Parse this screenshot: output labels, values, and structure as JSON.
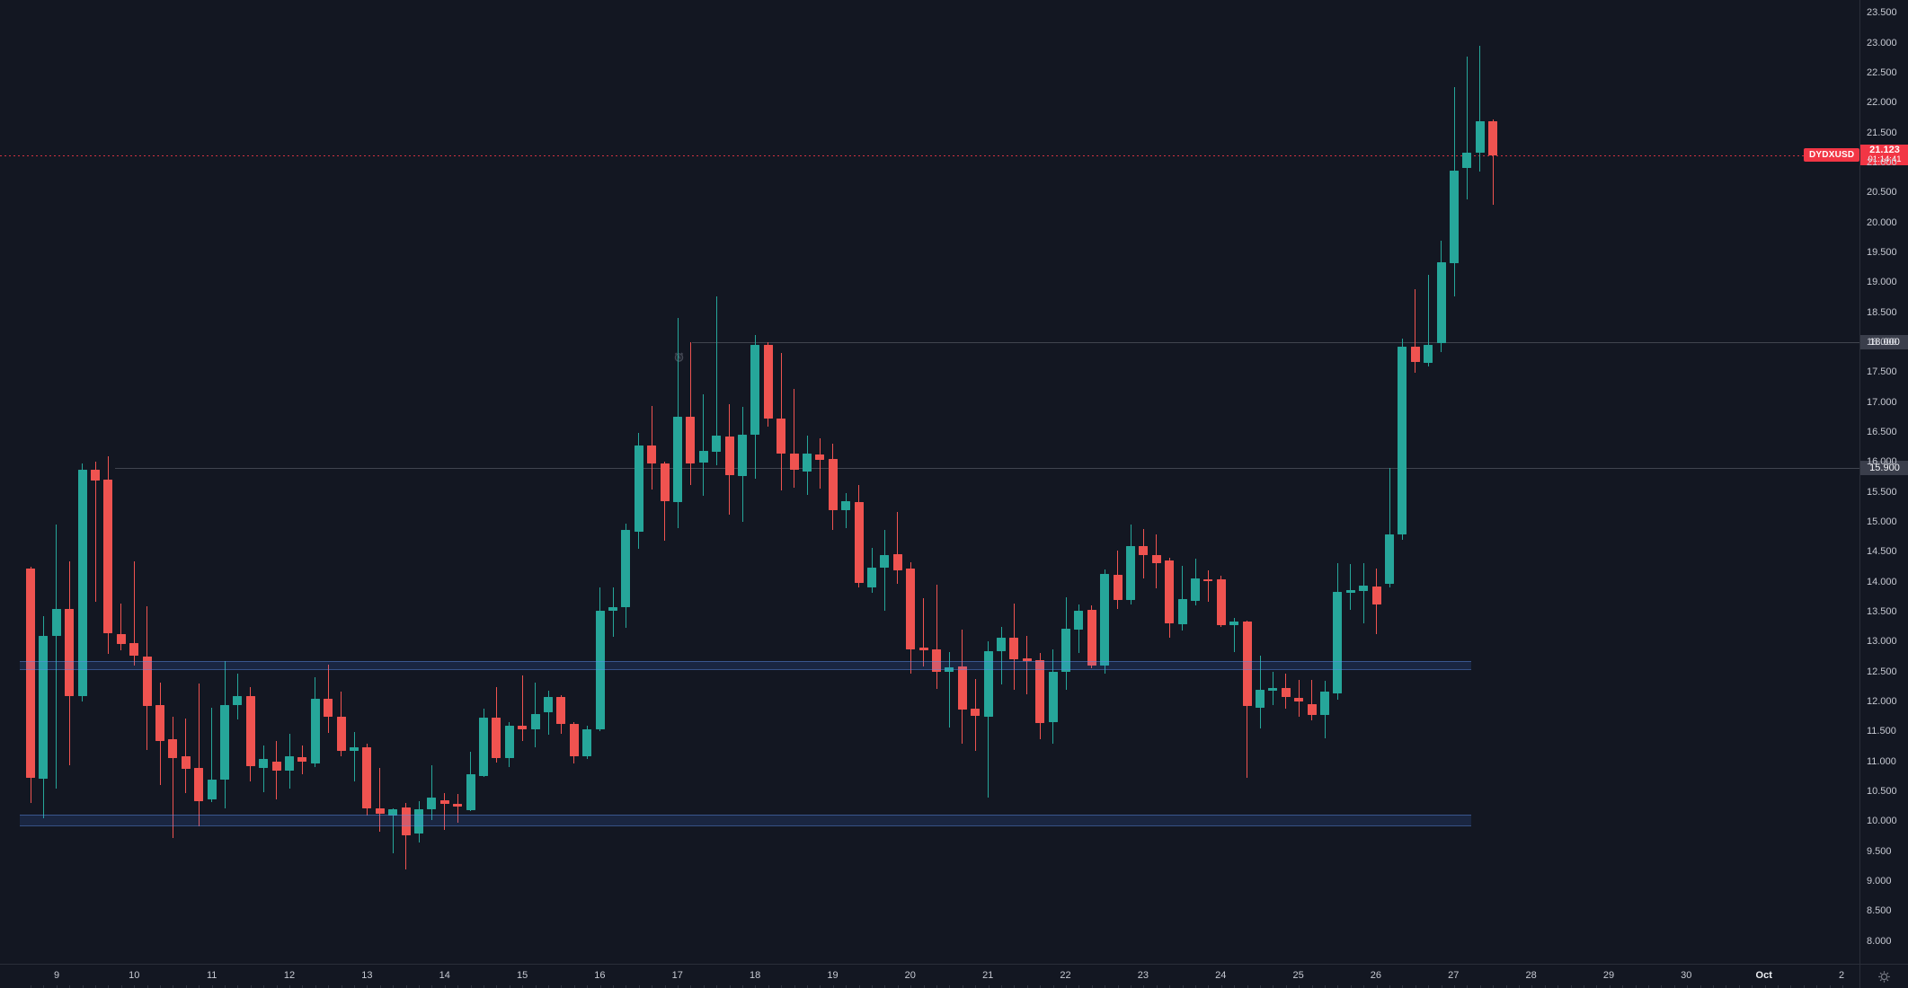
{
  "symbol": "DYDXUSD",
  "price_line": {
    "symbol_tag": "DYDXUSD",
    "last_price": "21.123",
    "countdown": "01:14:41",
    "color": "#f23645"
  },
  "colors": {
    "background": "#131722",
    "up": "#26a69a",
    "down": "#ef5350",
    "axis_text": "#c7cad3",
    "axis_border": "#2a2e39",
    "level_tag_bg": "#3a3e4b",
    "zone_fill": "rgba(74,134,255,0.14)"
  },
  "price_axis": {
    "tick_labels": [
      "23.500",
      "23.000",
      "22.500",
      "22.000",
      "21.500",
      "21.000",
      "20.500",
      "20.000",
      "19.500",
      "19.000",
      "18.500",
      "18.000",
      "17.500",
      "17.000",
      "16.500",
      "16.000",
      "15.500",
      "15.000",
      "14.500",
      "14.000",
      "13.500",
      "13.000",
      "12.500",
      "12.000",
      "11.500",
      "11.000",
      "10.500",
      "10.000",
      "9.500",
      "9.000",
      "8.500",
      "8.000"
    ],
    "level_tags": [
      {
        "text": "18.000"
      },
      {
        "text": "15.900"
      }
    ]
  },
  "time_axis": {
    "labels": [
      "9",
      "10",
      "11",
      "12",
      "13",
      "14",
      "15",
      "16",
      "17",
      "18",
      "19",
      "20",
      "21",
      "22",
      "23",
      "24",
      "25",
      "26",
      "27",
      "28",
      "29",
      "30",
      "Oct",
      "2"
    ],
    "emphasized": [
      "Oct"
    ]
  },
  "levels": [
    {
      "price": 18.0,
      "label": "18.000"
    },
    {
      "price": 15.9,
      "label": "15.900"
    }
  ],
  "zones": [
    {
      "price_top": 12.68,
      "price_bottom": 12.52
    },
    {
      "price_top": 10.11,
      "price_bottom": 9.92
    }
  ],
  "icons": {
    "alarm": "alarm-clock-icon on chart near 17.75",
    "gear": "time-axis-settings-gear"
  },
  "chart_data": {
    "type": "candlestick",
    "title": "DYDXUSD",
    "ylim": [
      8.0,
      23.5
    ],
    "y_tick_step": 0.5,
    "grid": "off",
    "current_price": 21.123,
    "ohlc_format": [
      "open",
      "high",
      "low",
      "close"
    ],
    "candles": [
      [
        14.22,
        14.25,
        10.31,
        10.72
      ],
      [
        10.71,
        13.43,
        10.05,
        13.09
      ],
      [
        13.09,
        14.96,
        10.54,
        13.55
      ],
      [
        13.55,
        14.34,
        10.93,
        12.09
      ],
      [
        12.09,
        15.97,
        12.0,
        15.87
      ],
      [
        15.87,
        16.0,
        13.66,
        15.69
      ],
      [
        15.7,
        16.09,
        12.8,
        13.14
      ],
      [
        13.13,
        13.64,
        12.86,
        12.96
      ],
      [
        12.97,
        14.34,
        12.6,
        12.77
      ],
      [
        12.75,
        13.59,
        11.19,
        11.93
      ],
      [
        11.94,
        12.32,
        10.6,
        11.34
      ],
      [
        11.37,
        11.74,
        9.72,
        11.06
      ],
      [
        11.08,
        11.71,
        10.47,
        10.87
      ],
      [
        10.89,
        12.3,
        9.91,
        10.34
      ],
      [
        10.37,
        11.89,
        10.32,
        10.69
      ],
      [
        10.7,
        12.68,
        10.22,
        11.94
      ],
      [
        11.94,
        12.47,
        11.7,
        12.09
      ],
      [
        12.09,
        12.24,
        10.67,
        10.92
      ],
      [
        10.89,
        11.27,
        10.49,
        11.04
      ],
      [
        10.99,
        11.34,
        10.37,
        10.84
      ],
      [
        10.84,
        11.46,
        10.54,
        11.09
      ],
      [
        11.07,
        11.26,
        10.79,
        10.99
      ],
      [
        10.97,
        12.4,
        10.91,
        12.04
      ],
      [
        12.04,
        12.62,
        11.47,
        11.74
      ],
      [
        11.74,
        12.17,
        11.09,
        11.17
      ],
      [
        11.17,
        11.49,
        10.67,
        11.23
      ],
      [
        11.23,
        11.3,
        10.1,
        10.22
      ],
      [
        10.22,
        10.89,
        9.82,
        10.12
      ],
      [
        10.09,
        10.22,
        9.46,
        10.2
      ],
      [
        10.23,
        10.3,
        9.19,
        9.77
      ],
      [
        9.79,
        10.34,
        9.64,
        10.2
      ],
      [
        10.2,
        10.93,
        10.02,
        10.39
      ],
      [
        10.35,
        10.47,
        9.86,
        10.29
      ],
      [
        10.29,
        10.45,
        9.97,
        10.24
      ],
      [
        10.19,
        11.16,
        10.17,
        10.78
      ],
      [
        10.76,
        11.88,
        10.74,
        11.73
      ],
      [
        11.73,
        12.24,
        10.98,
        11.06
      ],
      [
        11.06,
        11.65,
        10.91,
        11.6
      ],
      [
        11.6,
        12.43,
        11.34,
        11.54
      ],
      [
        11.53,
        12.32,
        11.23,
        11.79
      ],
      [
        11.82,
        12.18,
        11.44,
        12.07
      ],
      [
        12.08,
        12.1,
        11.46,
        11.62
      ],
      [
        11.63,
        11.65,
        10.96,
        11.08
      ],
      [
        11.09,
        11.6,
        11.04,
        11.53
      ],
      [
        11.53,
        13.9,
        11.5,
        13.52
      ],
      [
        13.52,
        13.9,
        13.08,
        13.58
      ],
      [
        13.58,
        14.97,
        13.23,
        14.87
      ],
      [
        14.83,
        16.48,
        14.55,
        16.28
      ],
      [
        16.28,
        16.94,
        15.54,
        15.97
      ],
      [
        15.98,
        16.0,
        14.68,
        15.34
      ],
      [
        15.33,
        18.41,
        14.89,
        16.76
      ],
      [
        16.76,
        18.0,
        15.62,
        15.97
      ],
      [
        15.99,
        17.13,
        15.44,
        16.18
      ],
      [
        16.17,
        18.77,
        15.95,
        16.44
      ],
      [
        16.42,
        16.97,
        15.12,
        15.78
      ],
      [
        15.77,
        16.92,
        15.0,
        16.46
      ],
      [
        16.46,
        18.12,
        15.72,
        17.96
      ],
      [
        17.96,
        18.0,
        16.59,
        16.73
      ],
      [
        16.72,
        17.82,
        15.53,
        16.14
      ],
      [
        16.14,
        17.22,
        15.57,
        15.87
      ],
      [
        15.84,
        16.44,
        15.45,
        16.14
      ],
      [
        16.12,
        16.4,
        15.56,
        16.04
      ],
      [
        16.05,
        16.3,
        14.87,
        15.19
      ],
      [
        15.19,
        15.48,
        14.89,
        15.34
      ],
      [
        15.33,
        15.62,
        13.9,
        13.98
      ],
      [
        13.9,
        14.57,
        13.82,
        14.24
      ],
      [
        14.24,
        14.86,
        13.52,
        14.44
      ],
      [
        14.46,
        15.16,
        13.96,
        14.19
      ],
      [
        14.22,
        14.32,
        12.47,
        12.87
      ],
      [
        12.9,
        13.72,
        12.59,
        12.86
      ],
      [
        12.87,
        13.95,
        12.21,
        12.49
      ],
      [
        12.49,
        12.83,
        11.57,
        12.57
      ],
      [
        12.59,
        13.2,
        11.29,
        11.87
      ],
      [
        11.88,
        12.38,
        11.17,
        11.76
      ],
      [
        11.74,
        13.0,
        10.4,
        12.84
      ],
      [
        12.84,
        13.25,
        12.29,
        13.07
      ],
      [
        13.07,
        13.64,
        12.2,
        12.71
      ],
      [
        12.72,
        13.09,
        12.12,
        12.67
      ],
      [
        12.69,
        12.81,
        11.37,
        11.64
      ],
      [
        11.65,
        12.87,
        11.29,
        12.5
      ],
      [
        12.49,
        13.74,
        12.19,
        13.22
      ],
      [
        13.2,
        13.62,
        12.81,
        13.52
      ],
      [
        13.53,
        13.6,
        12.55,
        12.6
      ],
      [
        12.6,
        14.21,
        12.46,
        14.13
      ],
      [
        14.11,
        14.52,
        13.54,
        13.69
      ],
      [
        13.69,
        14.96,
        13.62,
        14.59
      ],
      [
        14.59,
        14.88,
        14.06,
        14.45
      ],
      [
        14.45,
        14.79,
        13.89,
        14.31
      ],
      [
        14.36,
        14.4,
        13.07,
        13.3
      ],
      [
        13.29,
        14.27,
        13.19,
        13.71
      ],
      [
        13.68,
        14.39,
        13.6,
        14.06
      ],
      [
        14.04,
        14.19,
        13.66,
        14.02
      ],
      [
        14.04,
        14.1,
        13.25,
        13.27
      ],
      [
        13.27,
        13.4,
        12.82,
        13.33
      ],
      [
        13.33,
        13.35,
        10.73,
        11.93
      ],
      [
        11.89,
        12.77,
        11.55,
        12.19
      ],
      [
        12.18,
        12.49,
        11.94,
        12.22
      ],
      [
        12.22,
        12.47,
        11.88,
        12.07
      ],
      [
        12.06,
        12.36,
        11.74,
        12.0
      ],
      [
        11.96,
        12.36,
        11.69,
        11.78
      ],
      [
        11.78,
        12.35,
        11.39,
        12.17
      ],
      [
        12.14,
        14.31,
        12.03,
        13.83
      ],
      [
        13.81,
        14.29,
        13.53,
        13.86
      ],
      [
        13.85,
        14.31,
        13.31,
        13.93
      ],
      [
        13.92,
        14.22,
        13.12,
        13.62
      ],
      [
        13.96,
        15.9,
        13.9,
        14.79
      ],
      [
        14.79,
        18.06,
        14.7,
        17.92
      ],
      [
        17.92,
        18.89,
        17.49,
        17.67
      ],
      [
        17.66,
        19.12,
        17.6,
        17.96
      ],
      [
        17.99,
        19.69,
        17.84,
        19.34
      ],
      [
        19.32,
        22.26,
        18.77,
        20.87
      ],
      [
        20.91,
        22.77,
        20.38,
        21.16
      ],
      [
        21.16,
        22.95,
        20.85,
        21.69
      ],
      [
        21.69,
        21.72,
        20.29,
        21.123
      ]
    ]
  }
}
